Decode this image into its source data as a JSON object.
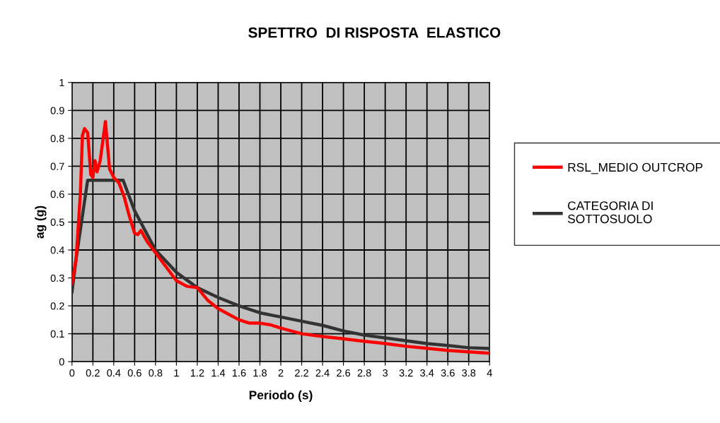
{
  "chart_data": {
    "type": "line",
    "title": "SPETTRO  DI RISPOSTA  ELASTICO",
    "xlabel": "Periodo (s)",
    "ylabel": "ag (g)",
    "xlim": [
      0,
      4
    ],
    "ylim": [
      0,
      1
    ],
    "xticks": [
      0,
      0.2,
      0.4,
      0.6,
      0.8,
      1,
      1.2,
      1.4,
      1.6,
      1.8,
      2,
      2.2,
      2.4,
      2.6,
      2.8,
      3,
      3.2,
      3.4,
      3.6,
      3.8,
      4
    ],
    "yticks": [
      0,
      0.1,
      0.2,
      0.3,
      0.4,
      0.5,
      0.6,
      0.7,
      0.8,
      0.9,
      1
    ],
    "grid": true,
    "legend": "right",
    "marker": "none",
    "line_style": "solid",
    "series": [
      {
        "name": "RSL_MEDIO OUTCROP",
        "color": "#ff0000",
        "x": [
          0,
          0.04,
          0.08,
          0.1,
          0.12,
          0.15,
          0.18,
          0.2,
          0.22,
          0.24,
          0.27,
          0.32,
          0.36,
          0.4,
          0.45,
          0.5,
          0.55,
          0.6,
          0.63,
          0.66,
          0.72,
          0.8,
          0.9,
          1.0,
          1.1,
          1.2,
          1.3,
          1.4,
          1.5,
          1.6,
          1.7,
          1.8,
          1.9,
          2.0,
          2.2,
          2.4,
          2.6,
          2.8,
          3.0,
          3.2,
          3.4,
          3.6,
          3.8,
          4.0
        ],
        "values": [
          0.28,
          0.37,
          0.6,
          0.81,
          0.835,
          0.82,
          0.67,
          0.66,
          0.72,
          0.68,
          0.72,
          0.86,
          0.69,
          0.66,
          0.64,
          0.59,
          0.52,
          0.46,
          0.455,
          0.47,
          0.43,
          0.39,
          0.34,
          0.29,
          0.27,
          0.265,
          0.22,
          0.19,
          0.17,
          0.15,
          0.138,
          0.138,
          0.132,
          0.12,
          0.1,
          0.09,
          0.082,
          0.073,
          0.065,
          0.055,
          0.048,
          0.04,
          0.035,
          0.03
        ]
      },
      {
        "name": "CATEGORIA DI\nSOTTOSUOLO",
        "color": "#333333",
        "x": [
          0,
          0.04,
          0.15,
          0.49,
          0.6,
          0.7,
          0.8,
          1.0,
          1.2,
          1.4,
          1.6,
          1.8,
          2.0,
          2.2,
          2.4,
          2.6,
          2.8,
          3.0,
          3.2,
          3.4,
          3.6,
          3.8,
          4.0
        ],
        "values": [
          0.25,
          0.37,
          0.65,
          0.65,
          0.54,
          0.47,
          0.4,
          0.32,
          0.265,
          0.23,
          0.2,
          0.175,
          0.16,
          0.145,
          0.13,
          0.11,
          0.095,
          0.085,
          0.075,
          0.065,
          0.058,
          0.05,
          0.047
        ]
      }
    ]
  }
}
